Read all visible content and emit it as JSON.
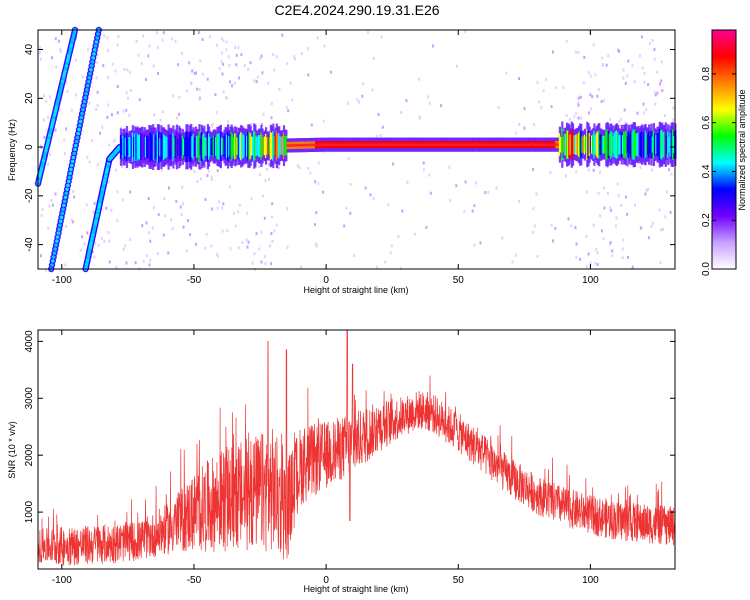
{
  "figure": {
    "title": "C2E4.2024.290.19.31.E26"
  },
  "chart_data": [
    {
      "type": "heatmap",
      "xlabel": "Height of straight line (km)",
      "ylabel": "Frequency (Hz)",
      "xlim": [
        -109,
        132
      ],
      "ylim": [
        -50,
        48
      ],
      "xticks": [
        -100,
        -50,
        0,
        50,
        100
      ],
      "yticks": [
        -40,
        -20,
        0,
        20,
        40
      ],
      "colorbar": {
        "label": "Normalized spectral amplitude",
        "range": [
          0.0,
          0.98
        ],
        "ticks": [
          0.0,
          0.2,
          0.4,
          0.6,
          0.8
        ],
        "colors": [
          "#ffffff",
          "#c8a0ff",
          "#7000ff",
          "#0000ff",
          "#00ffff",
          "#00ff00",
          "#ffff00",
          "#ff8000",
          "#ff0000",
          "#ff0090"
        ]
      },
      "features": {
        "steep_lines": [
          {
            "points": [
              [
                -109,
                -15
              ],
              [
                -95,
                48
              ]
            ],
            "amplitude": 0.3
          },
          {
            "points": [
              [
                -104,
                -50
              ],
              [
                -86,
                48
              ]
            ],
            "amplitude": 0.3
          },
          {
            "points": [
              [
                -91,
                -50
              ],
              [
                -82,
                -5
              ],
              [
                -78,
                0
              ]
            ],
            "amplitude": 0.3
          }
        ],
        "band_center_hz": [
          [
            -78,
            0
          ],
          [
            -60,
            0
          ],
          [
            -20,
            0.5
          ],
          [
            0,
            1
          ],
          [
            50,
            1
          ],
          [
            85,
            1
          ],
          [
            132,
            1
          ]
        ],
        "band_amplitude": [
          [
            -78,
            0.35
          ],
          [
            -40,
            0.45
          ],
          [
            -20,
            0.7
          ],
          [
            0,
            0.85
          ],
          [
            85,
            0.85
          ],
          [
            100,
            0.5
          ],
          [
            132,
            0.4
          ]
        ]
      }
    },
    {
      "type": "line",
      "xlabel": "Height of straight line (km)",
      "ylabel": "SNR (10 * v/v)",
      "xlim": [
        -109,
        132
      ],
      "ylim": [
        0,
        4200
      ],
      "xticks": [
        -100,
        -50,
        0,
        50,
        100
      ],
      "yticks": [
        1000,
        2000,
        3000,
        4000
      ],
      "color": "#ee3333",
      "envelope": {
        "x": [
          -109,
          -100,
          -90,
          -80,
          -70,
          -60,
          -50,
          -40,
          -30,
          -20,
          -15,
          -10,
          0,
          10,
          20,
          30,
          35,
          40,
          50,
          60,
          70,
          80,
          90,
          100,
          110,
          120,
          132
        ],
        "base": [
          400,
          400,
          420,
          450,
          500,
          700,
          1000,
          1200,
          1300,
          1400,
          1000,
          1800,
          2000,
          2200,
          2500,
          2700,
          2800,
          2750,
          2400,
          2000,
          1600,
          1300,
          1100,
          950,
          850,
          800,
          750
        ],
        "spread": [
          300,
          350,
          350,
          350,
          350,
          450,
          700,
          900,
          1000,
          1100,
          900,
          700,
          600,
          550,
          450,
          350,
          350,
          350,
          350,
          350,
          350,
          350,
          350,
          350,
          350,
          350,
          350
        ]
      },
      "spikes": [
        {
          "x": -22,
          "y": 4000
        },
        {
          "x": -15,
          "y": 3850
        },
        {
          "x": 8,
          "y": 4200
        },
        {
          "x": 10,
          "y": 3600
        },
        {
          "x": 9,
          "y": 850
        }
      ],
      "samples": 2400
    }
  ]
}
